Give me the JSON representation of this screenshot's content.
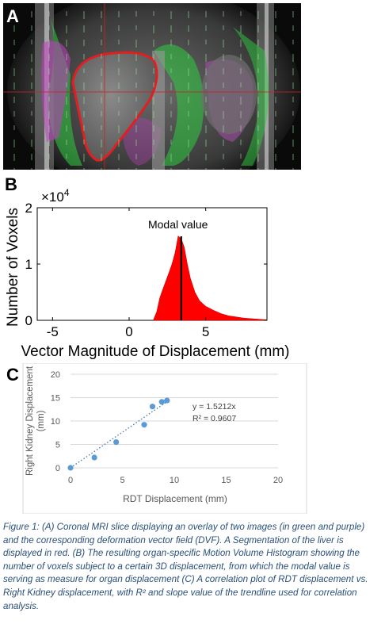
{
  "panel_a": {
    "label": "A"
  },
  "panel_b": {
    "label": "B",
    "chart_data": {
      "type": "area",
      "xlabel": "Vector Magnitude of Displacement (mm)",
      "ylabel": "Number of Voxels",
      "y_multiplier": "×10^4",
      "xlim": [
        -6,
        9
      ],
      "ylim": [
        0,
        2
      ],
      "xticks": [
        -5,
        0,
        5
      ],
      "yticks": [
        0,
        1,
        2
      ],
      "annotation": "Modal value",
      "modal_value": 3.4,
      "series_color": "#ff0000",
      "x": [
        1.6,
        1.8,
        2.0,
        2.2,
        2.4,
        2.6,
        2.8,
        3.0,
        3.2,
        3.4,
        3.6,
        3.8,
        4.0,
        4.3,
        4.6,
        5.0,
        5.5,
        6.0,
        6.5,
        7.0,
        7.5,
        8.0,
        8.5,
        9.0
      ],
      "y": [
        0.02,
        0.15,
        0.4,
        0.55,
        0.7,
        0.85,
        1.0,
        1.2,
        1.5,
        1.45,
        1.3,
        1.0,
        0.75,
        0.5,
        0.35,
        0.25,
        0.18,
        0.12,
        0.08,
        0.06,
        0.04,
        0.03,
        0.02,
        0.01
      ]
    }
  },
  "panel_c": {
    "label": "C",
    "chart_data": {
      "type": "scatter",
      "xlabel": "RDT Displacement (mm)",
      "ylabel": "Right Kidney Displacement (mm)",
      "xlim": [
        0,
        20
      ],
      "ylim": [
        0,
        20
      ],
      "xticks": [
        0,
        5,
        10,
        15,
        20
      ],
      "yticks": [
        0,
        5,
        10,
        15,
        20
      ],
      "x": [
        0,
        2.3,
        4.4,
        7.1,
        7.9,
        8.8,
        9.3
      ],
      "y": [
        0,
        2.2,
        5.5,
        9.2,
        13.1,
        14.1,
        14.4
      ],
      "point_color": "#5b9bd5",
      "trendline": {
        "slope": 1.5212,
        "equation": "y = 1.5212x",
        "r2": "R² = 0.9607"
      }
    }
  },
  "caption": "Figure 1: (A) Coronal MRI slice displaying an overlay of two images (in green and purple) and the corresponding deformation vector field (DVF). A Segmentation of the liver is displayed in red. (B) The resulting organ-specific Motion Volume Histogram showing the number of voxels subject to a certain 3D displacement, from which the modal value is serving as measure for organ displacement (C) A correlation plot of RDT displacement vs. Right Kidney displacement, with R² and slope value of the trendline used for correlation analysis."
}
